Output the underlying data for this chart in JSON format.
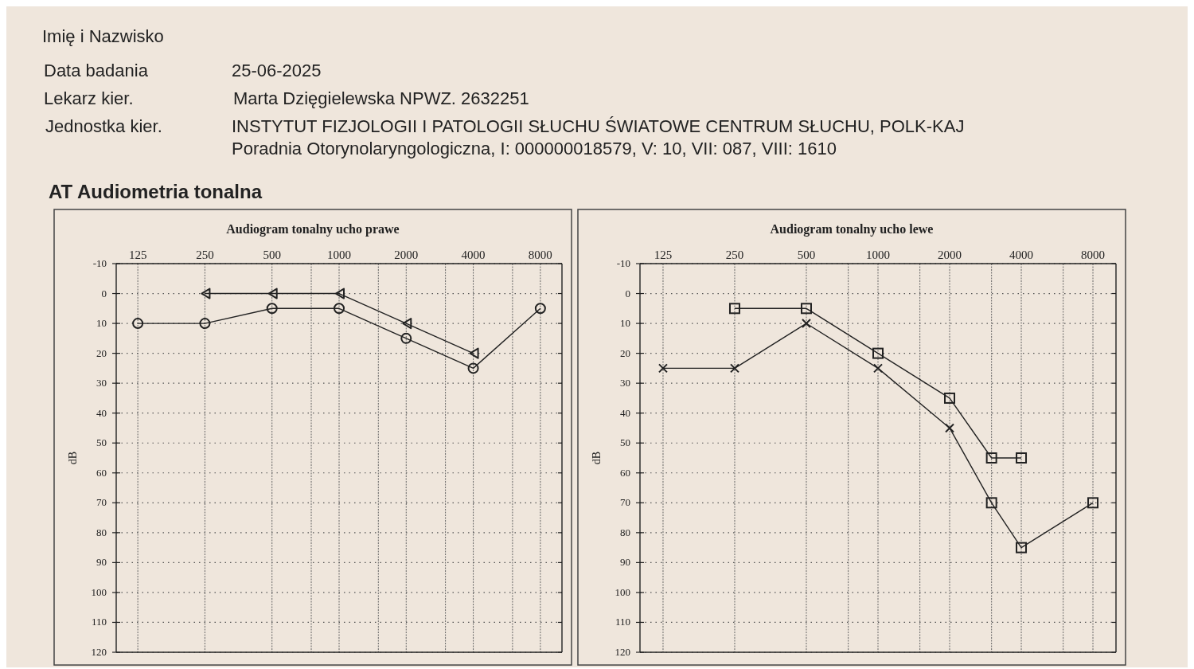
{
  "chart_data": [
    {
      "type": "other",
      "title": "AT Audiometria tonalna",
      "annotations": [
        "Imię i Nazwisko",
        "Data badania",
        "25-06-2025",
        "Lekarz kier.",
        "Marta Dzięgielewska NPWZ. 2632251",
        "Jednostka kier.",
        "INSTYTUT FIZJOLOGII I PATOLOGII SŁUCHU   ŚWIATOWE CENTRUM SŁUCHU, POLK-KAJ",
        "Poradnia Otorynolaryngologiczna, I: 000000018579, V: 10, VII: 087, VIII: 1610"
      ]
    },
    {
      "type": "line",
      "title": "Audiogram tonalny ucho prawe",
      "ylabel": "dB",
      "log": "x",
      "grid": true,
      "xlim": [
        100,
        10000
      ],
      "xticks": [
        125,
        250,
        500,
        {
          "value": 750,
          "label": null
        },
        1000,
        {
          "value": 1500,
          "label": null
        },
        2000,
        {
          "value": 3000,
          "label": null
        },
        4000,
        {
          "value": 6000,
          "label": null
        },
        8000
      ],
      "ylim": [
        120,
        -10
      ],
      "yticks": [
        -10,
        0,
        10,
        20,
        30,
        40,
        50,
        60,
        70,
        80,
        90,
        100,
        110,
        120
      ],
      "series": [
        {
          "color": "#222222",
          "marker": "circle",
          "x": [
            125,
            250,
            500,
            1000,
            2000,
            4000,
            8000
          ],
          "values": [
            10,
            10,
            5,
            5,
            15,
            25,
            5
          ]
        },
        {
          "color": "#222222",
          "marker": "triangle",
          "x": [
            250,
            500,
            1000,
            2000,
            4000
          ],
          "values": [
            0,
            0,
            0,
            10,
            20
          ]
        }
      ]
    },
    {
      "type": "line",
      "title": "Audiogram tonalny ucho lewe",
      "ylabel": "dB",
      "log": "x",
      "grid": true,
      "xlim": [
        100,
        10000
      ],
      "xticks": [
        125,
        250,
        500,
        {
          "value": 750,
          "label": null
        },
        1000,
        {
          "value": 1500,
          "label": null
        },
        2000,
        {
          "value": 3000,
          "label": null
        },
        4000,
        {
          "value": 6000,
          "label": null
        },
        8000
      ],
      "ylim": [
        120,
        -10
      ],
      "yticks": [
        -10,
        0,
        10,
        20,
        30,
        40,
        50,
        60,
        70,
        80,
        90,
        100,
        110,
        120
      ],
      "series": [
        {
          "color": "#222222",
          "marker": [
            "cross",
            "cross",
            "cross",
            "cross",
            "cross",
            "square",
            "square",
            "square"
          ],
          "x": [
            125,
            250,
            500,
            1000,
            2000,
            3000,
            4000,
            8000
          ],
          "values": [
            25,
            25,
            10,
            25,
            45,
            70,
            85,
            70
          ]
        },
        {
          "color": "#222222",
          "marker": "square",
          "x": [
            250,
            500,
            1000,
            2000,
            3000,
            4000
          ],
          "values": [
            5,
            5,
            20,
            35,
            55,
            55
          ]
        }
      ]
    }
  ]
}
